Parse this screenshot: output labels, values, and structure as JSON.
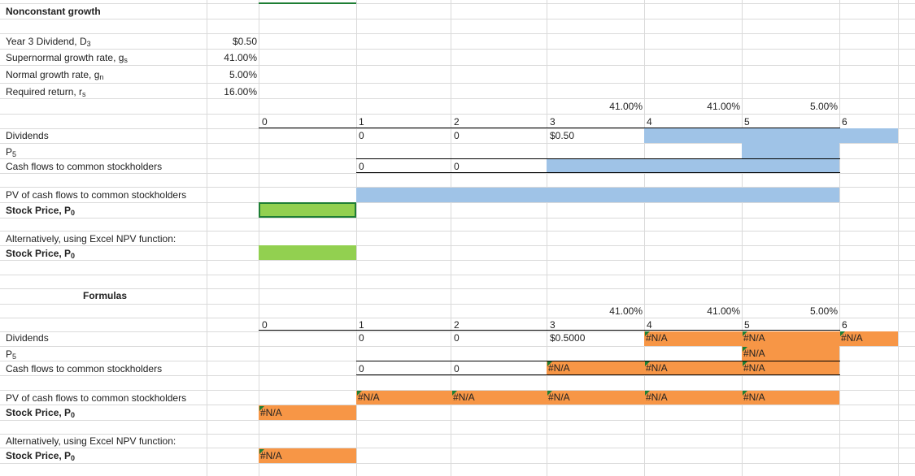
{
  "title": "Nonconstant growth",
  "inputs": [
    {
      "label": "Year 3 Dividend, D",
      "sub": "3",
      "value": "$0.50"
    },
    {
      "label": "Supernormal growth rate, g",
      "sub": "s",
      "value": "41.00%"
    },
    {
      "label": "Normal growth rate, g",
      "sub": "n",
      "value": "5.00%"
    },
    {
      "label": "Required return, r",
      "sub": "s",
      "value": "16.00%"
    }
  ],
  "top": {
    "rates": [
      "41.00%",
      "41.00%",
      "5.00%"
    ],
    "periods": [
      "0",
      "1",
      "2",
      "3",
      "4",
      "5",
      "6"
    ],
    "dividends_label": "Dividends",
    "dividends": [
      "0",
      "0",
      "$0.50"
    ],
    "p5_label": "P",
    "p5_sub": "5",
    "cf_label": "Cash flows to common stockholders",
    "cf": [
      "0",
      "0"
    ],
    "pv_label": "PV of cash flows to common stockholders",
    "price_label": "Stock Price, P",
    "price_sub": "0",
    "alt_label": "Alternatively, using Excel NPV function:",
    "alt_price_label": "Stock Price, P",
    "alt_price_sub": "0"
  },
  "formulas": {
    "heading": "Formulas",
    "rates": [
      "41.00%",
      "41.00%",
      "5.00%"
    ],
    "periods": [
      "0",
      "1",
      "2",
      "3",
      "4",
      "5",
      "6"
    ],
    "dividends_label": "Dividends",
    "dividends": [
      "0",
      "0",
      "$0.5000",
      "#N/A",
      "#N/A",
      "#N/A"
    ],
    "p5_label": "P",
    "p5_sub": "5",
    "p5_value": "#N/A",
    "cf_label": "Cash flows to common stockholders",
    "cf": [
      "0",
      "0",
      "#N/A",
      "#N/A",
      "#N/A"
    ],
    "pv_label": "PV of cash flows to common stockholders",
    "pv": [
      "#N/A",
      "#N/A",
      "#N/A",
      "#N/A",
      "#N/A"
    ],
    "price_label": "Stock Price, P",
    "price_sub": "0",
    "price_value": "#N/A",
    "alt_label": "Alternatively, using Excel NPV function:",
    "alt_price_label": "Stock Price, P",
    "alt_price_sub": "0",
    "alt_price_value": "#N/A"
  },
  "colors": {
    "blue": "#9fc3e7",
    "orange": "#f79646",
    "green": "#92d050",
    "grid": "#dadada",
    "error_marker": "#1e7e34"
  }
}
